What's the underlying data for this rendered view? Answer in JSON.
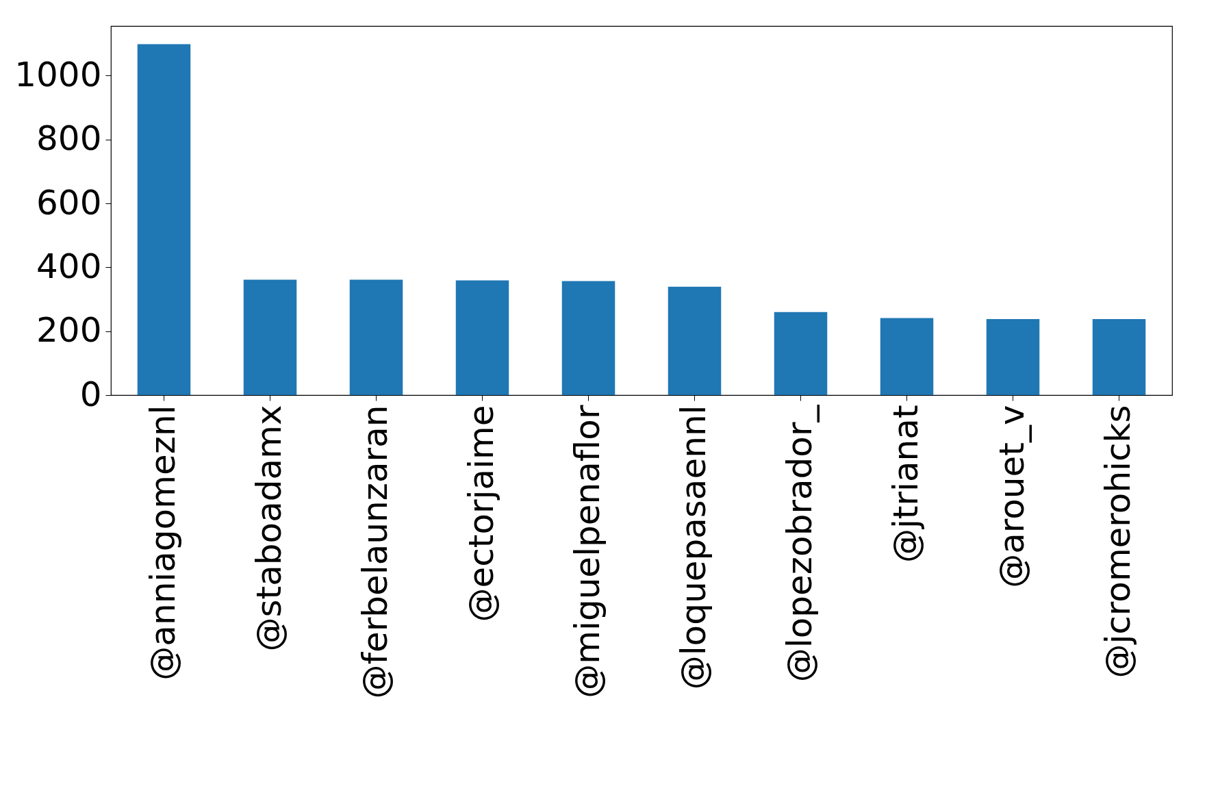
{
  "chart_data": {
    "type": "bar",
    "categories": [
      "@anniagomeznl",
      "@staboadamx",
      "@ferbelaunzaran",
      "@ectorjaime",
      "@miguelpenaflor",
      "@loquepasaennl",
      "@lopezobrador_",
      "@jtrianat",
      "@arouet_v",
      "@jcromerohicks"
    ],
    "values": [
      1098,
      361,
      361,
      359,
      357,
      339,
      260,
      241,
      238,
      238
    ],
    "color": "#1f77b4",
    "ylim": [
      0,
      1155
    ],
    "yticks": [
      0,
      200,
      400,
      600,
      800,
      1000
    ],
    "grid": false
  }
}
